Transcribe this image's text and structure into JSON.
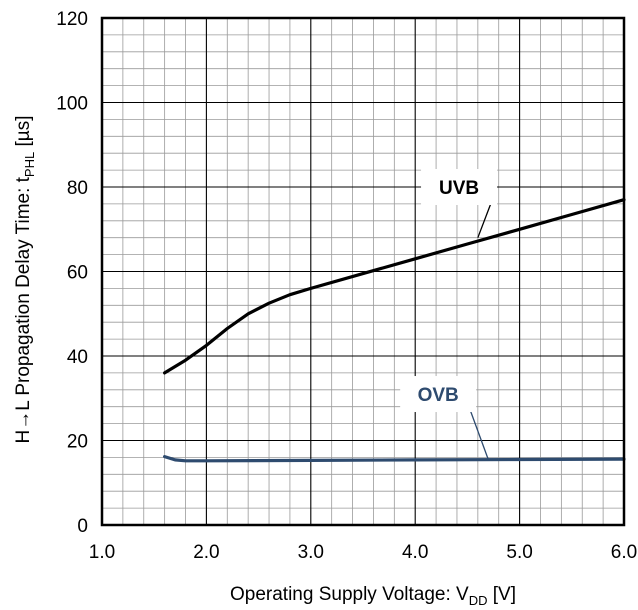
{
  "chart_data": {
    "type": "line",
    "title": "",
    "xlabel": {
      "main": "Operating Supply Voltage: V",
      "sub": "DD",
      "unit": " [V]"
    },
    "ylabel": {
      "main": "H→L Propagation Delay Time: t",
      "sub": "PHL",
      "unit": " [µs]"
    },
    "xlim": [
      1.0,
      6.0
    ],
    "ylim": [
      0,
      120
    ],
    "x_ticks": [
      "1.0",
      "2.0",
      "3.0",
      "4.0",
      "5.0",
      "6.0"
    ],
    "y_ticks": [
      "0",
      "20",
      "40",
      "60",
      "80",
      "100",
      "120"
    ],
    "grid": true,
    "series": [
      {
        "name": "UVB",
        "color": "#000000",
        "points": [
          [
            1.6,
            36.0
          ],
          [
            1.8,
            39.0
          ],
          [
            2.0,
            42.5
          ],
          [
            2.2,
            46.5
          ],
          [
            2.4,
            50.0
          ],
          [
            2.6,
            52.5
          ],
          [
            2.8,
            54.5
          ],
          [
            3.0,
            56.0
          ],
          [
            3.5,
            59.5
          ],
          [
            4.0,
            63.0
          ],
          [
            4.5,
            66.5
          ],
          [
            5.0,
            70.0
          ],
          [
            5.5,
            73.5
          ],
          [
            6.0,
            77.0
          ]
        ],
        "label_at": [
          4.42,
          80.0
        ],
        "pointer_to": [
          4.6,
          68.0
        ]
      },
      {
        "name": "OVB",
        "color": "#2e4b6f",
        "points": [
          [
            1.6,
            16.2
          ],
          [
            1.7,
            15.4
          ],
          [
            1.8,
            15.2
          ],
          [
            2.0,
            15.2
          ],
          [
            3.0,
            15.3
          ],
          [
            4.0,
            15.4
          ],
          [
            5.0,
            15.5
          ],
          [
            6.0,
            15.6
          ]
        ],
        "label_at": [
          4.22,
          31.0
        ],
        "pointer_to": [
          4.7,
          15.5
        ]
      }
    ]
  }
}
